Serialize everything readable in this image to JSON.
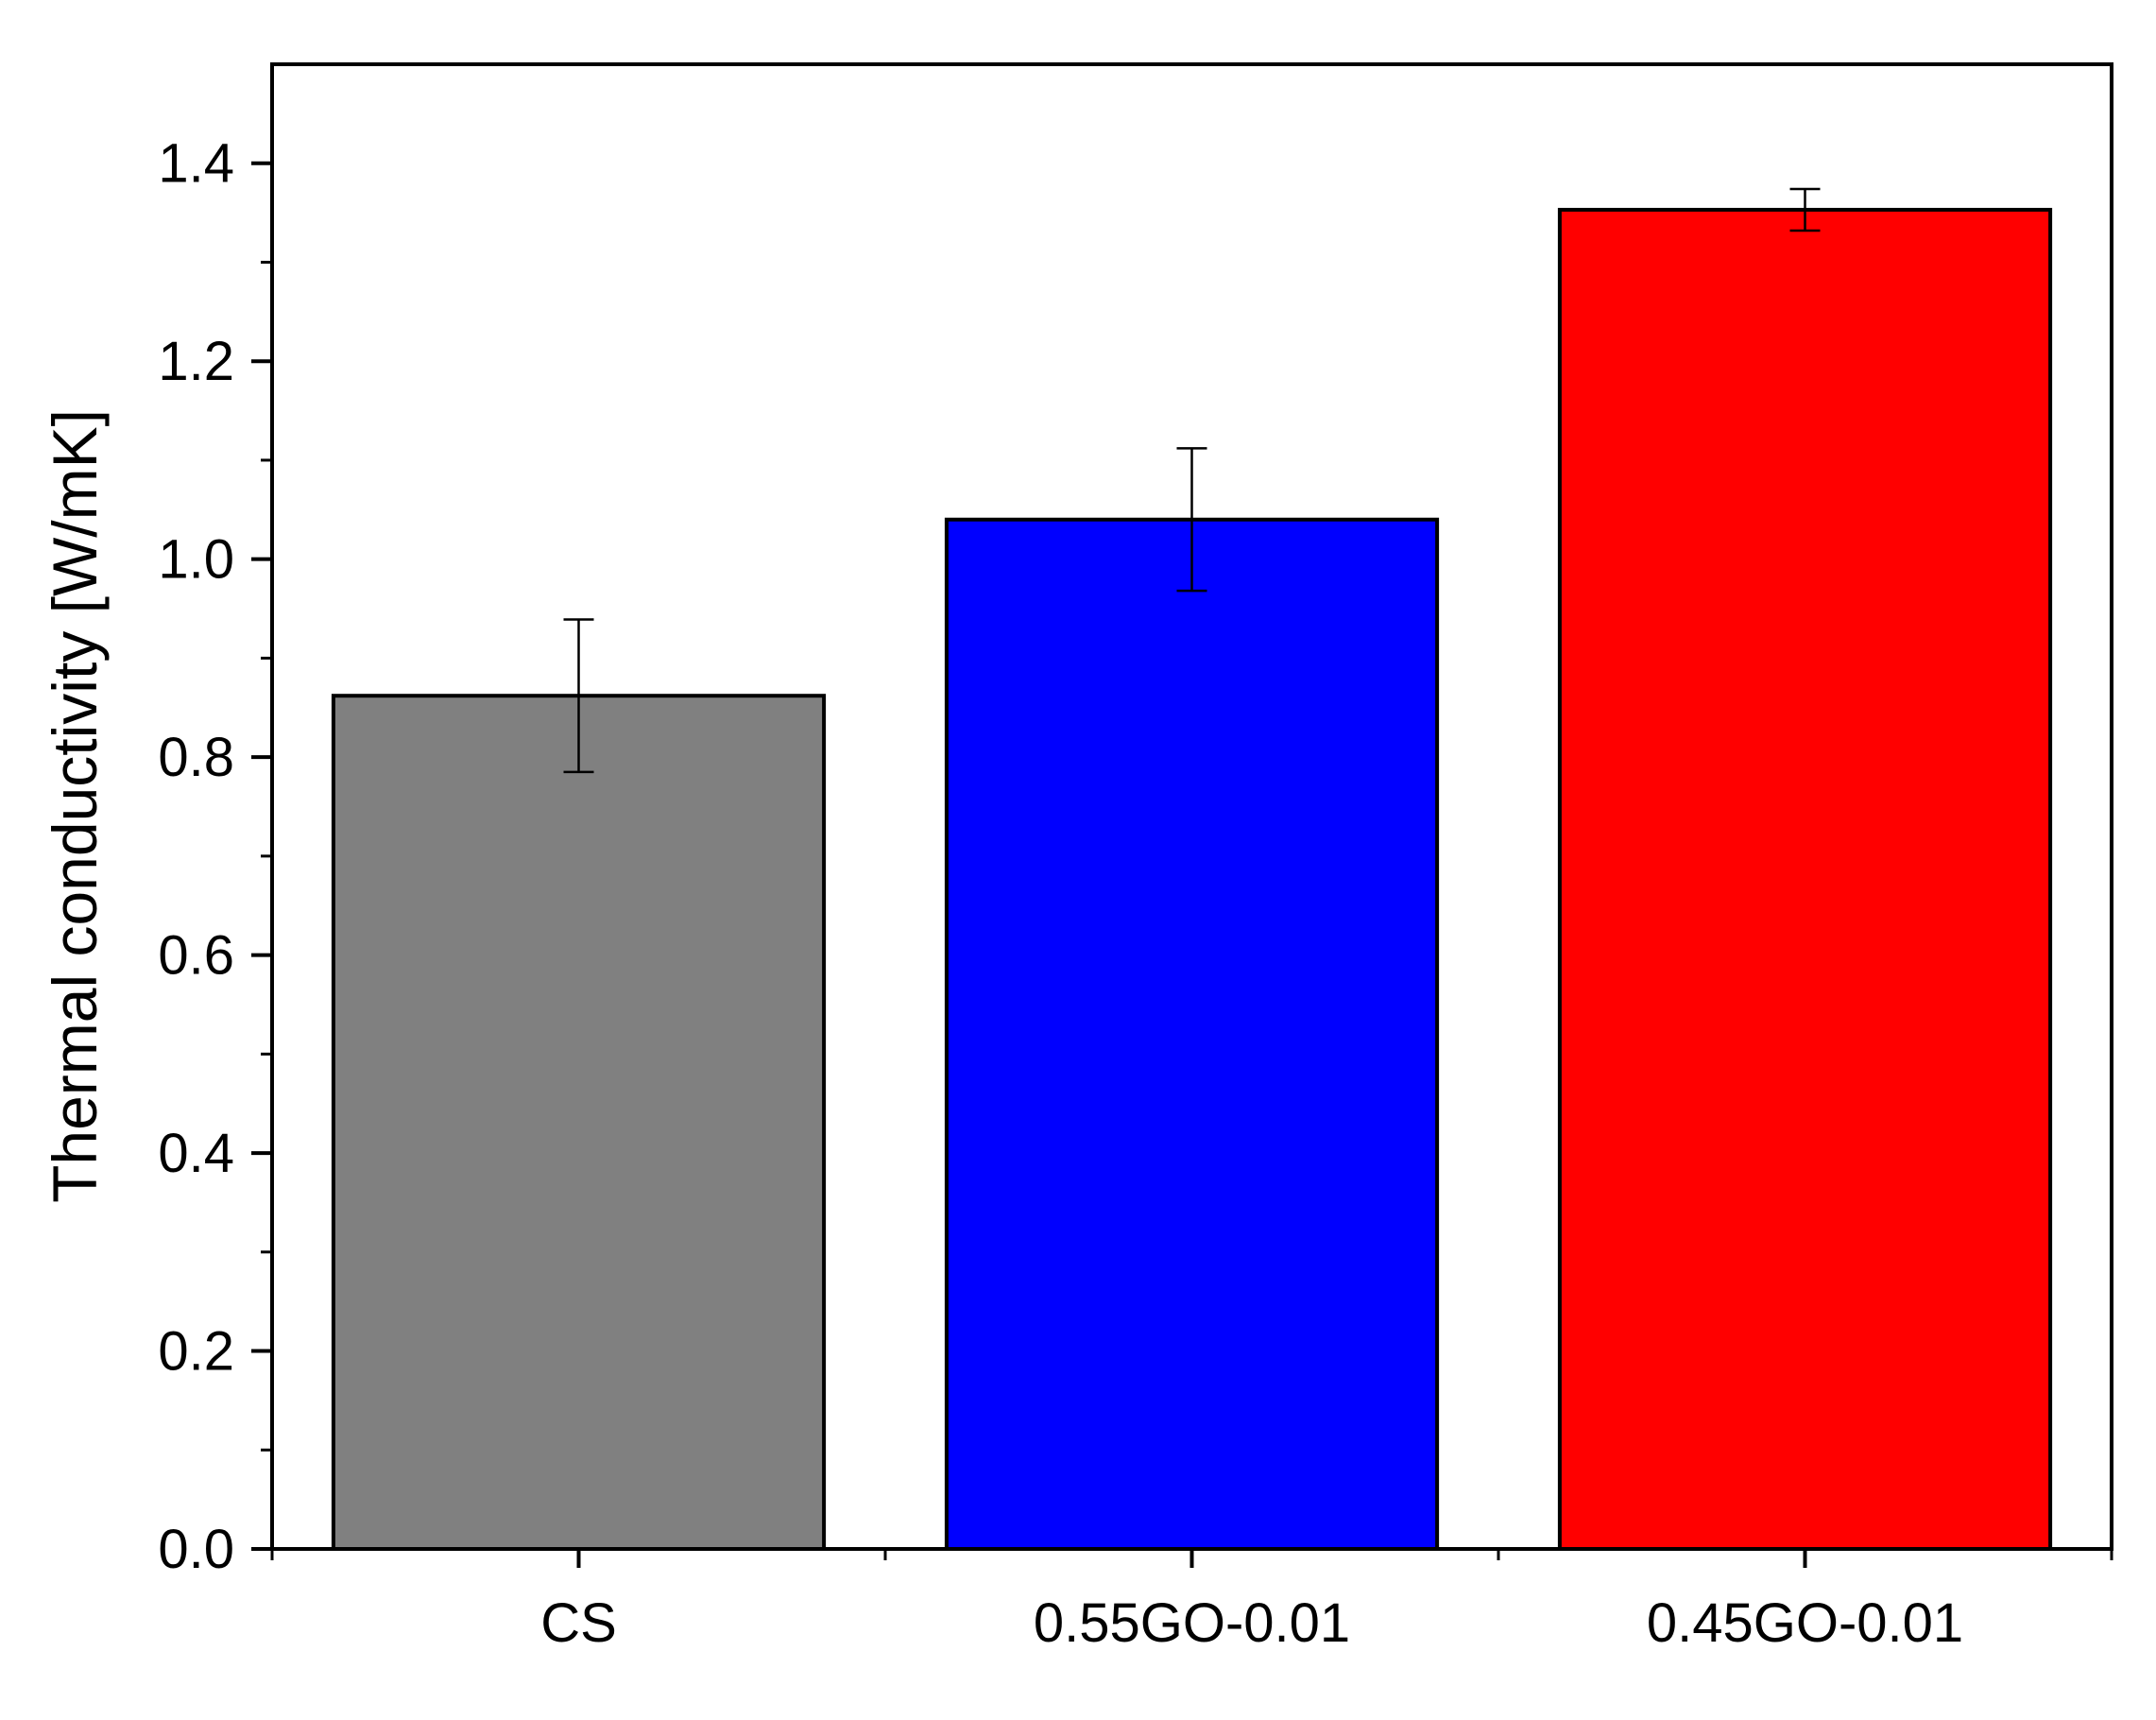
{
  "chart_data": {
    "type": "bar",
    "categories": [
      "CS",
      "0.55GO-0.01",
      "0.45GO-0.01"
    ],
    "values": [
      0.862,
      1.04,
      1.353
    ],
    "errors": [
      0.077,
      0.072,
      0.021
    ],
    "bar_colors": [
      "#808080",
      "#0000ff",
      "#ff0000"
    ],
    "ylabel": "Thermal conductivity [W/mK]",
    "xlabel": "",
    "title": "",
    "ylim": [
      0,
      1.5
    ],
    "yticks": [
      "0.0",
      "0.2",
      "0.4",
      "0.6",
      "0.8",
      "1.0",
      "1.2",
      "1.4"
    ],
    "grid": false,
    "legend": "none"
  }
}
